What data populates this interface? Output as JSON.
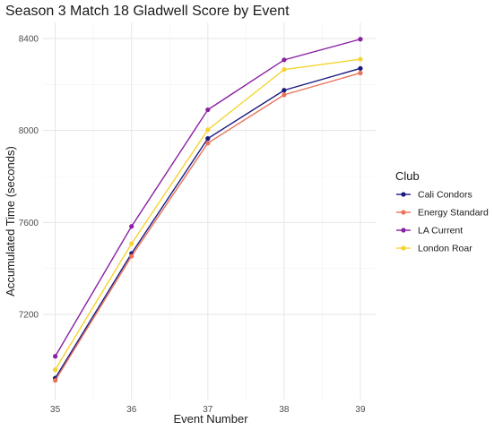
{
  "chart_data": {
    "type": "line",
    "title": "Season 3 Match 18 Gladwell Score by Event",
    "xlabel": "Event Number",
    "ylabel": "Accumulated Time (seconds)",
    "x": [
      35,
      36,
      37,
      38,
      39
    ],
    "x_ticks": [
      35,
      36,
      37,
      38,
      39
    ],
    "y_ticks": [
      7200,
      7600,
      8000,
      8400
    ],
    "xlim": [
      34.84,
      39.2
    ],
    "ylim": [
      6830,
      8470
    ],
    "grid": true,
    "legend": {
      "title": "Club",
      "position": "right"
    },
    "series": [
      {
        "name": "Cali Condors",
        "color": "#1a1a7e",
        "values": [
          6923,
          7465,
          7965,
          8175,
          8270
        ]
      },
      {
        "name": "Energy Standard",
        "color": "#e8735a",
        "values": [
          6913,
          7453,
          7945,
          8155,
          8250
        ]
      },
      {
        "name": "LA Current",
        "color": "#8a1fa3",
        "values": [
          7018,
          7583,
          8090,
          8307,
          8397
        ]
      },
      {
        "name": "London Roar",
        "color": "#f5d430",
        "values": [
          6960,
          7508,
          8003,
          8265,
          8310
        ]
      }
    ]
  }
}
